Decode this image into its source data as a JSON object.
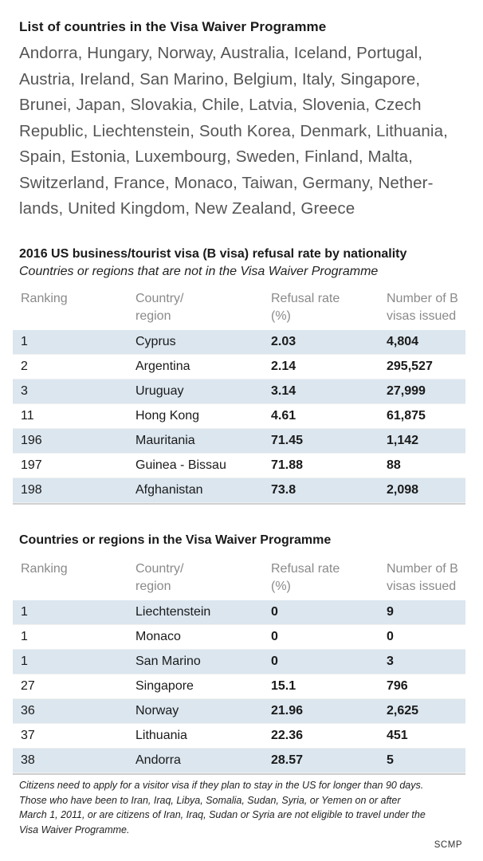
{
  "vwp_list": {
    "title": "List of countries in the Visa Waiver Programme",
    "lines": [
      "Andorra, Hungary, Norway, Australia, Iceland, Portugal,",
      "Austria, Ireland, San Marino, Belgium, Italy, Singapore,",
      "Brunei, Japan, Slovakia, Chile, Latvia, Slovenia, Czech",
      "Republic, Liechtenstein, South Korea, Denmark, Lithuania,",
      "Spain, Estonia, Luxembourg, Sweden, Finland, Malta,",
      "Switzerland, France, Monaco, Taiwan, Germany, Nether-",
      "lands, United Kingdom, New Zealand, Greece"
    ]
  },
  "table1": {
    "title": "2016 US business/tourist visa (B visa) refusal rate by nationality",
    "subtitle": "Countries or regions that are not in the Visa Waiver Programme",
    "headers": [
      "Ranking",
      "Country/\nregion",
      "Refusal rate\n(%)",
      "Number of B\nvisas issued"
    ],
    "rows": [
      [
        "1",
        "Cyprus",
        "2.03",
        "4,804"
      ],
      [
        "2",
        "Argentina",
        "2.14",
        "295,527"
      ],
      [
        "3",
        "Uruguay",
        "3.14",
        "27,999"
      ],
      [
        "11",
        "Hong Kong",
        "4.61",
        "61,875"
      ],
      [
        "196",
        "Mauritania",
        "71.45",
        "1,142"
      ],
      [
        "197",
        "Guinea - Bissau",
        "71.88",
        "88"
      ],
      [
        "198",
        "Afghanistan",
        "73.8",
        "2,098"
      ]
    ]
  },
  "table2": {
    "title": "Countries or regions in the Visa Waiver Programme",
    "headers": [
      "Ranking",
      "Country/\nregion",
      "Refusal rate\n(%)",
      "Number of B\nvisas issued"
    ],
    "rows": [
      [
        "1",
        "Liechtenstein",
        "0",
        "9"
      ],
      [
        "1",
        "Monaco",
        "0",
        "0"
      ],
      [
        "1",
        "San Marino",
        "0",
        "3"
      ],
      [
        "27",
        "Singapore",
        "15.1",
        "796"
      ],
      [
        "36",
        "Norway",
        "21.96",
        "2,625"
      ],
      [
        "37",
        "Lithuania",
        "22.36",
        "451"
      ],
      [
        "38",
        "Andorra",
        "28.57",
        "5"
      ]
    ]
  },
  "footnote": {
    "lines": [
      "Citizens need to apply for a visitor visa if they plan to stay in the US for longer than 90 days.",
      "Those who have been to Iran, Iraq, Libya, Somalia, Sudan, Syria, or Yemen on or after",
      "March 1, 2011, or are citizens of Iran, Iraq, Sudan or Syria are not eligible to travel under the",
      "Visa Waiver Programme."
    ]
  },
  "credit": "SCMP",
  "colors": {
    "stripe": "#dbe6ef",
    "header_text": "#8a8a8a",
    "list_text": "#555555"
  }
}
